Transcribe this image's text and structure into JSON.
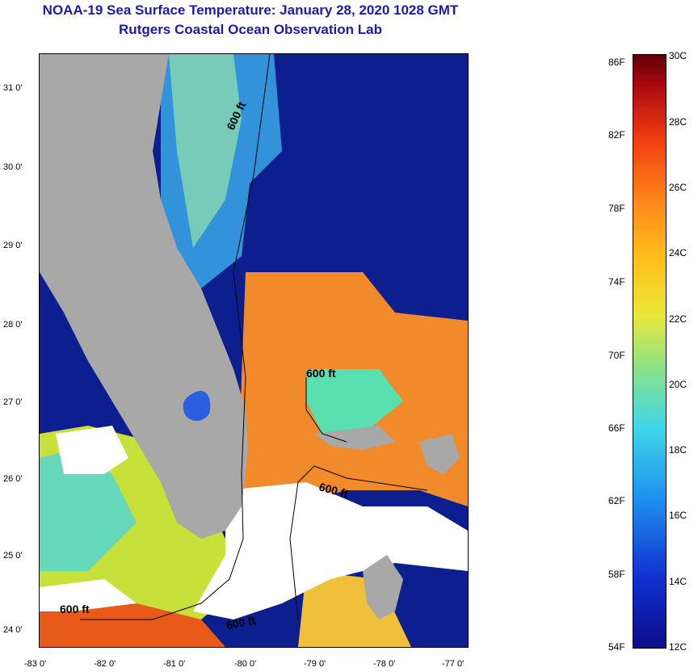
{
  "title_line1": "NOAA-19 Sea Surface Temperature:  January 28, 2020 1028 GMT",
  "title_line2": "Rutgers Coastal Ocean Observation Lab",
  "lat_ticks": [
    "31 0'",
    "30 0'",
    "29 0'",
    "28 0'",
    "27 0'",
    "26 0'",
    "25 0'",
    "24 0'"
  ],
  "lon_ticks": [
    "-83 0'",
    "-82 0'",
    "-81 0'",
    "-80 0'",
    "-79 0'",
    "-78 0'",
    "-77 0'"
  ],
  "contour_label": "600 ft",
  "colorbar": {
    "fahrenheit": [
      "86F",
      "82F",
      "78F",
      "74F",
      "70F",
      "66F",
      "62F",
      "58F",
      "54F"
    ],
    "celsius": [
      "30C",
      "28C",
      "26C",
      "24C",
      "22C",
      "20C",
      "18C",
      "16C",
      "14C",
      "12C"
    ],
    "colors": [
      "#0d0d8a",
      "#1e90f0",
      "#8ae28a",
      "#e8e83a",
      "#ff8a1a",
      "#f03a10",
      "#600008"
    ]
  }
}
